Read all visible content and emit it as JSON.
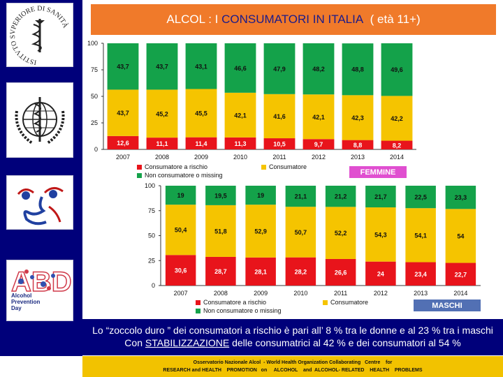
{
  "title": {
    "prefix": "ALCOL : I ",
    "highlight": "CONSUMATORI IN ITALIA",
    "suffix": "  ( età 11+)"
  },
  "colors": {
    "risk": "#e8141b",
    "consumer": "#f5c400",
    "non_consumer": "#14a24a",
    "female_badge": "#e04fd0",
    "male_badge": "#5270b4"
  },
  "logos": [
    "istituto-superiore-di-sanita-logo",
    "who-logo",
    "face-logo",
    "alcohol-prevention-day-logo"
  ],
  "logo_text": {
    "iss": "ISTITVTO SVPERIORE DI SANITÀ",
    "apd": "Alcohol Prevention Day"
  },
  "legend": {
    "risk": "Consumatore a rischio",
    "consumer": "Consumatore",
    "non_consumer": "Non consumatore o missing"
  },
  "chart_data": [
    {
      "type": "bar",
      "stacked": true,
      "badge": "FEMMINE",
      "categories": [
        "2007",
        "2008",
        "2009",
        "2010",
        "2011",
        "2012",
        "2013",
        "2014"
      ],
      "ylim": [
        0,
        100
      ],
      "yticks": [
        0,
        25,
        50,
        75,
        100
      ],
      "series": [
        {
          "name": "Consumatore a rischio",
          "values": [
            12.6,
            11.1,
            11.4,
            11.3,
            10.5,
            9.7,
            8.8,
            8.2
          ],
          "labels": [
            "12,6",
            "11,1",
            "11,4",
            "11,3",
            "10,5",
            "9,7",
            "8,8",
            "8,2"
          ]
        },
        {
          "name": "Consumatore",
          "values": [
            43.7,
            45.2,
            45.5,
            42.1,
            41.6,
            42.1,
            42.3,
            42.2
          ],
          "labels": [
            "43,7",
            "45,2",
            "45,5",
            "42,1",
            "41,6",
            "42,1",
            "42,3",
            "42,2"
          ]
        },
        {
          "name": "Non consumatore o missing",
          "values": [
            43.7,
            43.7,
            43.1,
            46.6,
            47.9,
            48.2,
            48.8,
            49.6
          ],
          "labels": [
            "43,7",
            "43,7",
            "43,1",
            "46,6",
            "47,9",
            "48,2",
            "48,8",
            "49,6"
          ]
        }
      ]
    },
    {
      "type": "bar",
      "stacked": true,
      "badge": "MASCHI",
      "categories": [
        "2007",
        "2008",
        "2009",
        "2010",
        "2011",
        "2012",
        "2013",
        "2014"
      ],
      "ylim": [
        0,
        100
      ],
      "yticks": [
        0,
        25,
        50,
        75,
        100
      ],
      "series": [
        {
          "name": "Consumatore a rischio",
          "values": [
            30.6,
            28.7,
            28.1,
            28.2,
            26.6,
            24,
            23.4,
            22.7
          ],
          "labels": [
            "30,6",
            "28,7",
            "28,1",
            "28,2",
            "26,6",
            "24",
            "23,4",
            "22,7"
          ]
        },
        {
          "name": "Consumatore",
          "values": [
            50.4,
            51.8,
            52.9,
            50.7,
            52.2,
            54.3,
            54.1,
            54
          ],
          "labels": [
            "50,4",
            "51,8",
            "52,9",
            "50,7",
            "52,2",
            "54,3",
            "54,1",
            "54"
          ]
        },
        {
          "name": "Non consumatore o missing",
          "values": [
            19,
            19.5,
            19,
            21.1,
            21.2,
            21.7,
            22.5,
            23.3
          ],
          "labels": [
            "19",
            "19,5",
            "19",
            "21,1",
            "21,2",
            "21,7",
            "22,5",
            "23,3"
          ]
        }
      ]
    }
  ],
  "summary": {
    "line1": "Lo “zoccolo duro ” dei consumatori a rischio è pari all’ 8 % tra le donne e al 23 % tra i maschi",
    "line2_prefix": "Con ",
    "line2_underlined": "STABILIZZAZIONE",
    "line2_suffix": " delle consumatrici al 42 % e dei consumatori al 54 %"
  },
  "footer": {
    "line1": "Osservatorio Nazionale Alcol  - World Health Organization Collaborating   Centre    for",
    "line2": "RESEARCH and HEALTH    PROMOTION   on     ALCOHOL    and  ALCOHOL- RELATED    HEALTH    PROBLEMS"
  }
}
